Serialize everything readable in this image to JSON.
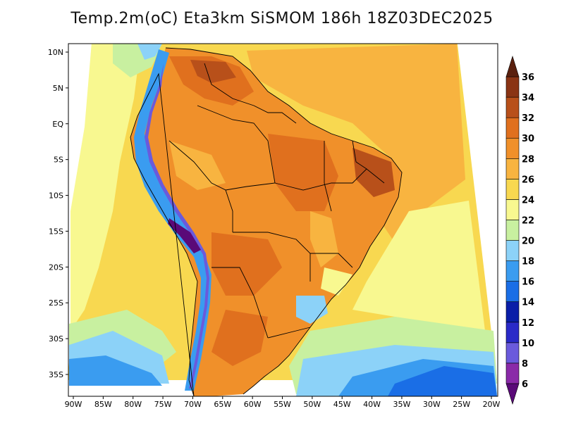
{
  "title": "Temp.2m(oC) Eta3km SiSMOM 186h 18Z03DEC2025",
  "map": {
    "variable": "2 m air temperature",
    "units": "oC",
    "lon_ticks": [
      "90W",
      "85W",
      "80W",
      "75W",
      "70W",
      "65W",
      "60W",
      "55W",
      "50W",
      "45W",
      "40W",
      "35W",
      "30W",
      "25W",
      "20W"
    ],
    "lat_ticks": [
      "10N",
      "5N",
      "EQ",
      "5S",
      "10S",
      "15S",
      "20S",
      "25S",
      "30S",
      "35S"
    ]
  },
  "colorbar": {
    "labels": [
      "6",
      "8",
      "10",
      "12",
      "14",
      "16",
      "18",
      "20",
      "22",
      "24",
      "26",
      "28",
      "30",
      "32",
      "34",
      "36"
    ],
    "colors": [
      "#5a0a78",
      "#8a2aa8",
      "#6a5adc",
      "#2a2ac8",
      "#0a1ea8",
      "#1a6ee6",
      "#3a9cf0",
      "#8cd2f8",
      "#c8f0a0",
      "#f8f890",
      "#f8d850",
      "#f8b440",
      "#f0902a",
      "#e0701e",
      "#b8501a",
      "#8a3414",
      "#5a200e"
    ]
  }
}
